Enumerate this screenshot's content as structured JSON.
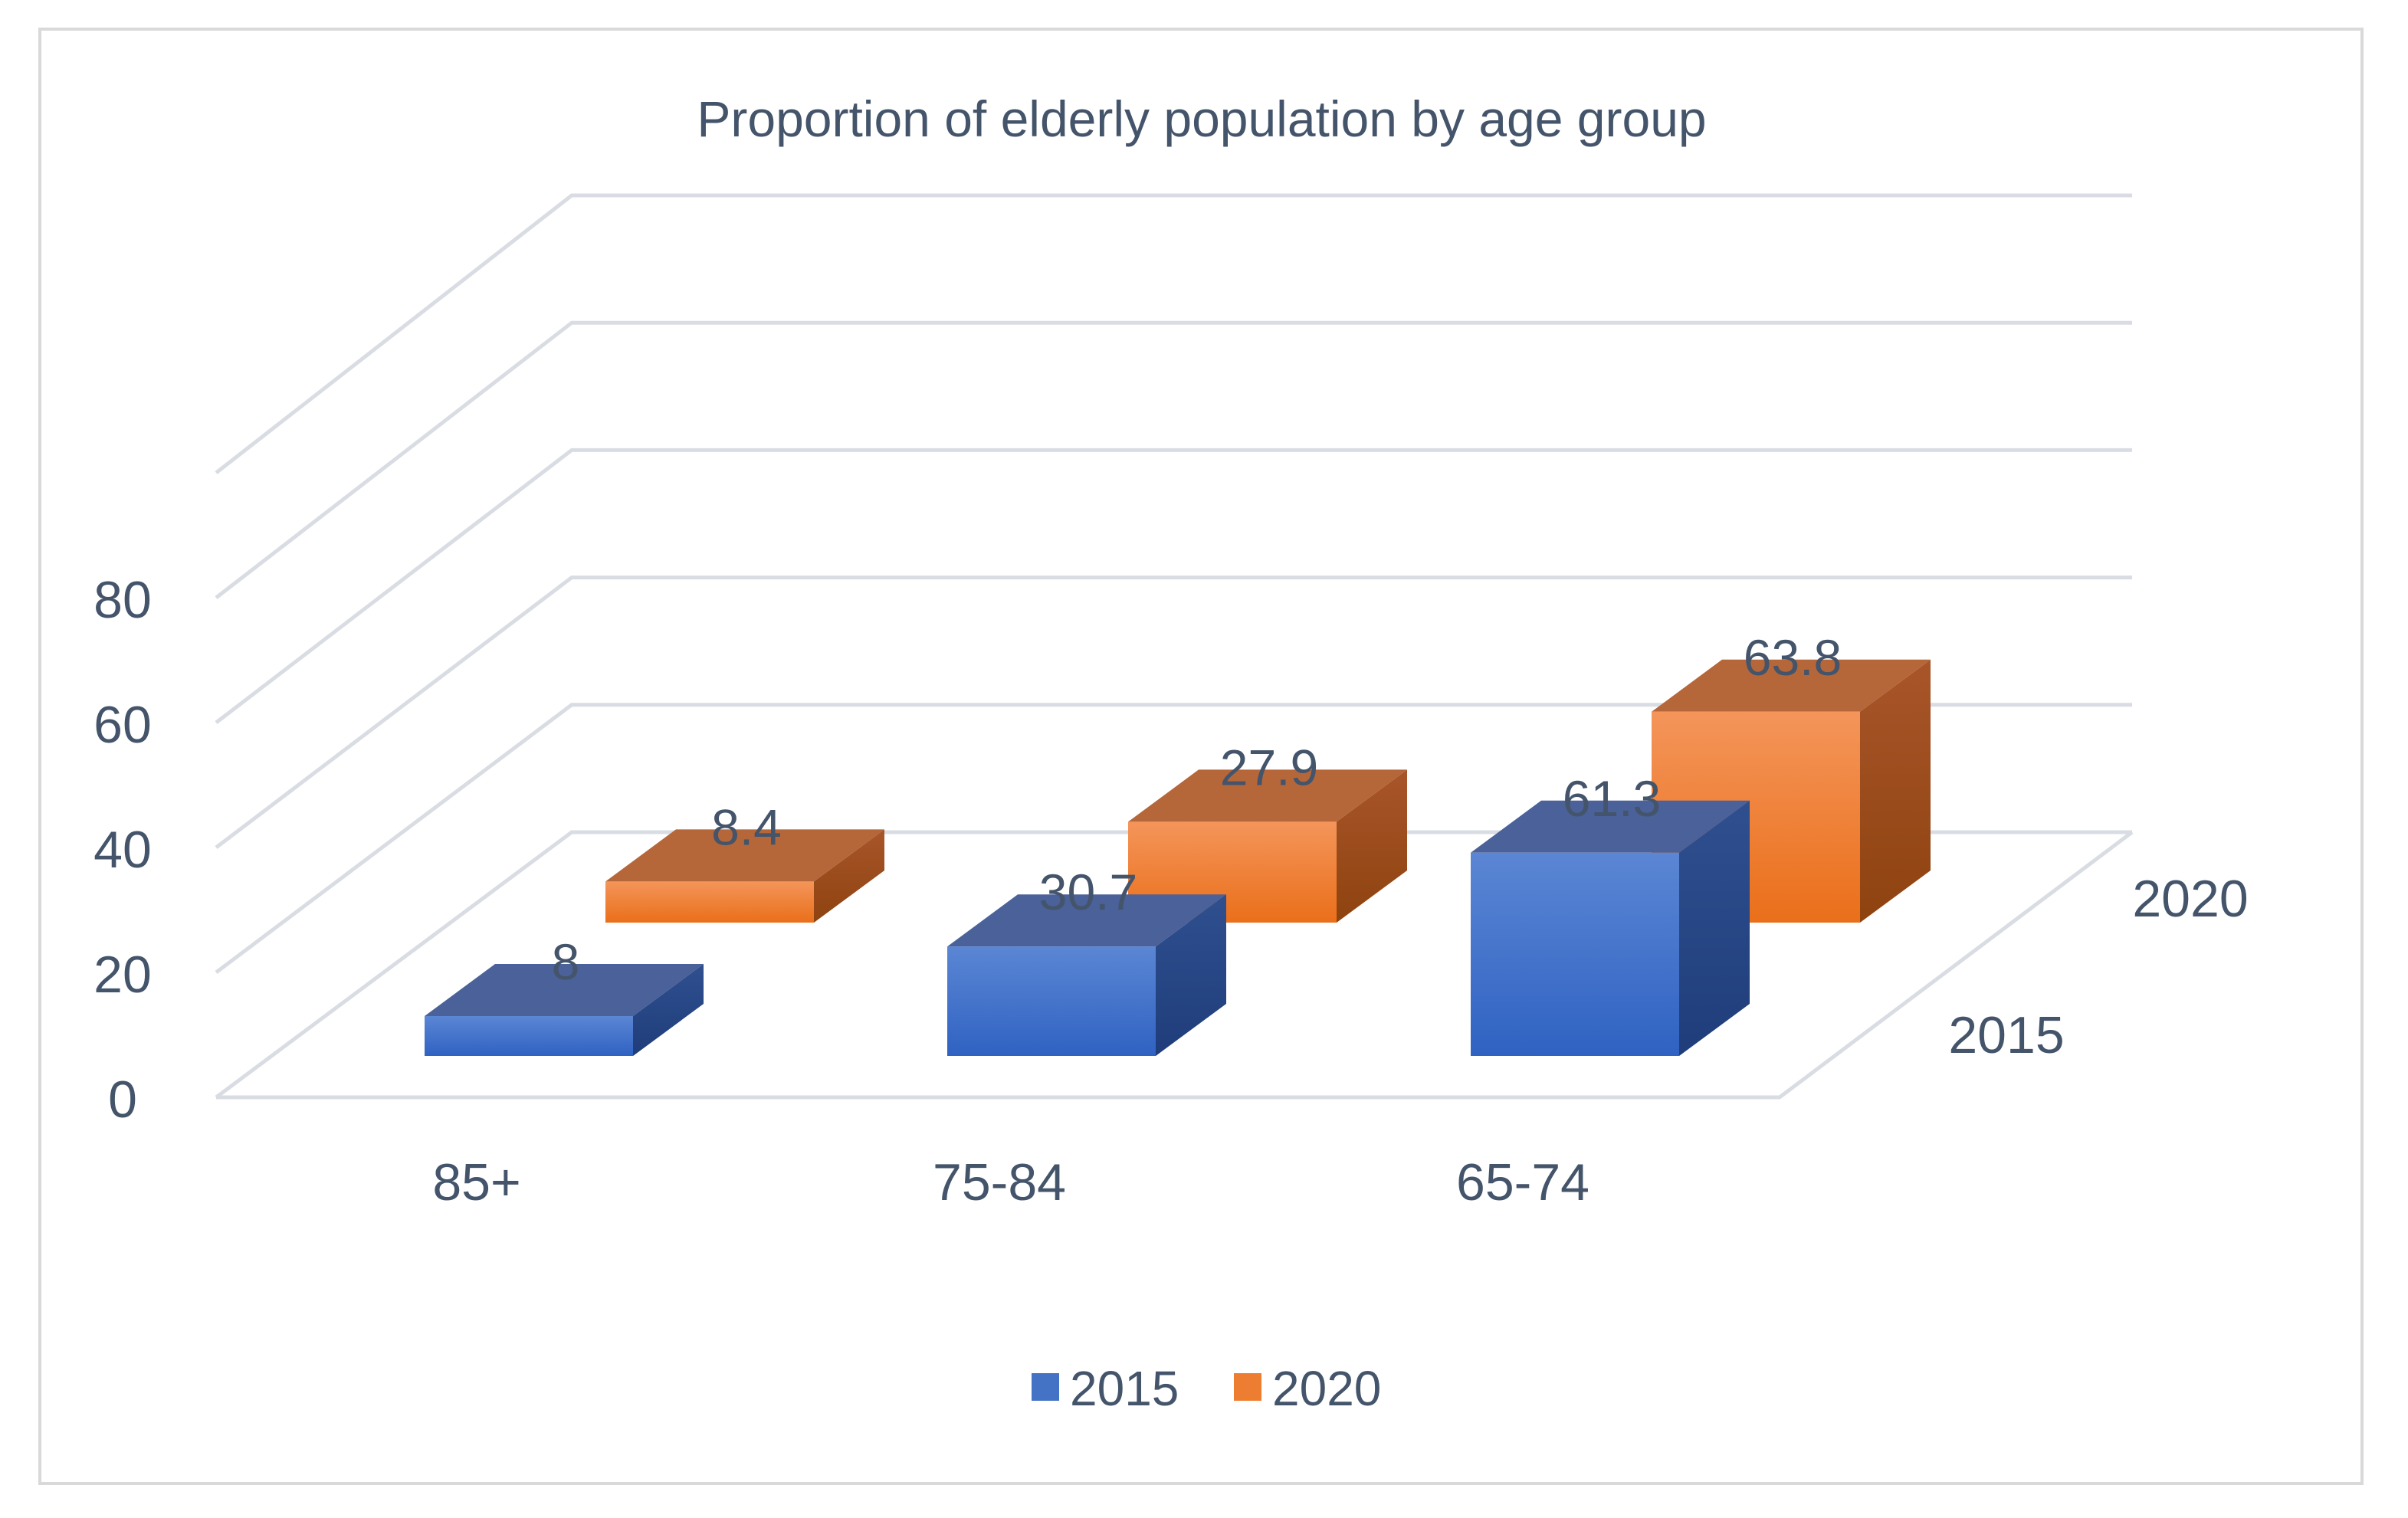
{
  "chart_data": {
    "type": "bar",
    "title": "Proportion of elderly population by age group",
    "categories": [
      "85+",
      "75-84",
      "65-74"
    ],
    "series": [
      {
        "name": "2015",
        "values": [
          8,
          30.7,
          61.3
        ],
        "color": "#4472c4"
      },
      {
        "name": "2020",
        "values": [
          8.4,
          27.9,
          63.8
        ],
        "color": "#ed7d31"
      }
    ],
    "ylim": [
      0,
      100
    ],
    "yticks": [
      "0",
      "20",
      "40",
      "60",
      "80"
    ],
    "depth_labels": [
      "2015",
      "2020"
    ],
    "legend": {
      "position": "bottom",
      "items": [
        "2015",
        "2020"
      ]
    },
    "grid": true
  }
}
